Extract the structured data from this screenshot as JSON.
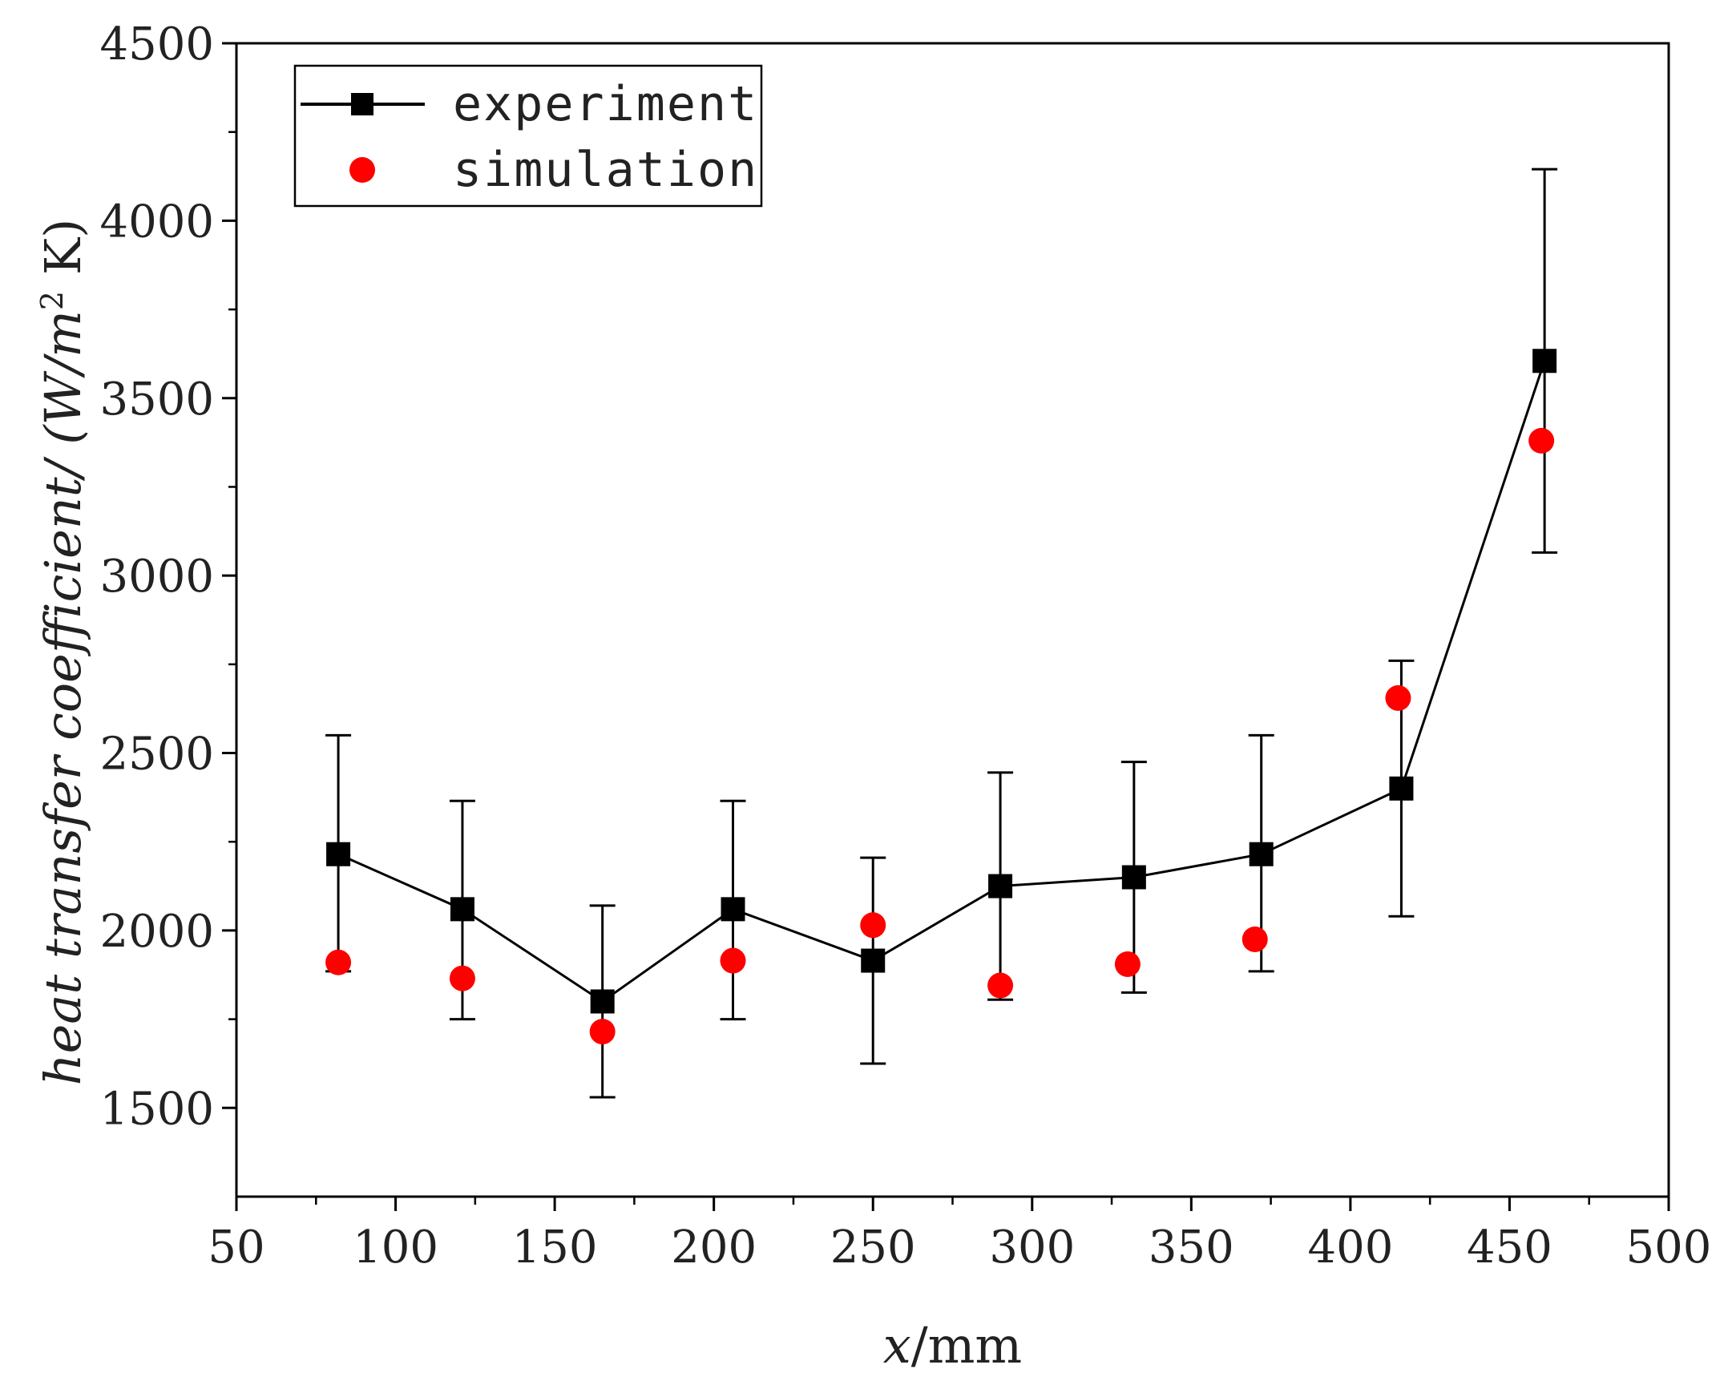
{
  "colors": {
    "experiment": "#000000",
    "simulation": "#ff0000",
    "axis": "#000000",
    "background": "#ffffff"
  },
  "chart_data": {
    "type": "scatter",
    "title": "",
    "xlabel": "x/mm",
    "xlabel_var": "x",
    "xlabel_unit": "/mm",
    "ylabel": "heat transfer coefficient/ (W/m² K)",
    "ylabel_main": "heat transfer coefficient/ (W/m",
    "ylabel_sup": "2",
    "ylabel_tail": " K)",
    "xlim": [
      50,
      500
    ],
    "ylim": [
      1250,
      4500
    ],
    "x_ticks": [
      50,
      100,
      150,
      200,
      250,
      300,
      350,
      400,
      450,
      500
    ],
    "y_ticks": [
      1500,
      2000,
      2500,
      3000,
      3500,
      4000,
      4500
    ],
    "legend_position": "top-left",
    "series": [
      {
        "name": "experiment",
        "style": "line-square",
        "x": [
          82,
          121,
          165,
          206,
          250,
          290,
          332,
          372,
          416,
          461
        ],
        "y": [
          2215,
          2060,
          1800,
          2060,
          1915,
          2125,
          2150,
          2215,
          2400,
          3605
        ],
        "err_upper": [
          2550,
          2365,
          2070,
          2365,
          2205,
          2445,
          2475,
          2550,
          2760,
          4145
        ],
        "err_lower": [
          1885,
          1750,
          1530,
          1750,
          1625,
          1805,
          1825,
          1885,
          2040,
          3065
        ]
      },
      {
        "name": "simulation",
        "style": "circle",
        "x": [
          82,
          121,
          165,
          206,
          250,
          290,
          330,
          370,
          415,
          460
        ],
        "y": [
          1910,
          1865,
          1715,
          1915,
          2015,
          1845,
          1905,
          1975,
          2655,
          3380
        ]
      }
    ]
  }
}
